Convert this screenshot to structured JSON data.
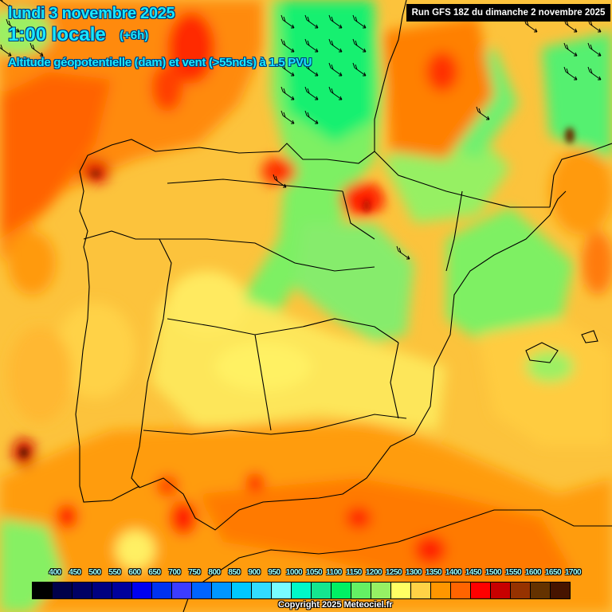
{
  "header": {
    "date": "lundi 3 novembre 2025",
    "time": "1:00 locale",
    "offset": "(+6h)",
    "parameter": "Altitude géopotentielle (dam) et vent (>55nds) à 1.5 PVU"
  },
  "run_info": "Run GFS 18Z du dimanche 2 novembre 2025",
  "legend": {
    "labels": [
      "400",
      "450",
      "500",
      "550",
      "600",
      "650",
      "700",
      "750",
      "800",
      "850",
      "900",
      "950",
      "1000",
      "1050",
      "1100",
      "1150",
      "1200",
      "1250",
      "1300",
      "1350",
      "1400",
      "1450",
      "1500",
      "1550",
      "1600",
      "1650",
      "1700"
    ],
    "colors": [
      "#000000",
      "#00004a",
      "#000064",
      "#000080",
      "#00009c",
      "#0000f0",
      "#0032f0",
      "#3c3cff",
      "#0064ff",
      "#0096ff",
      "#00c8ff",
      "#32dcff",
      "#78fcff",
      "#00f8c8",
      "#14e690",
      "#00f064",
      "#64f064",
      "#96f064",
      "#ffff64",
      "#ffd246",
      "#ff9600",
      "#ff6400",
      "#ff0000",
      "#c80000",
      "#963200",
      "#643200",
      "#461400"
    ]
  },
  "map": {
    "region": "Péninsule ibérique",
    "wind_barb_color": "#000000",
    "border_color": "#000000"
  },
  "copyright": "Copyright 2025 Meteociel.fr"
}
